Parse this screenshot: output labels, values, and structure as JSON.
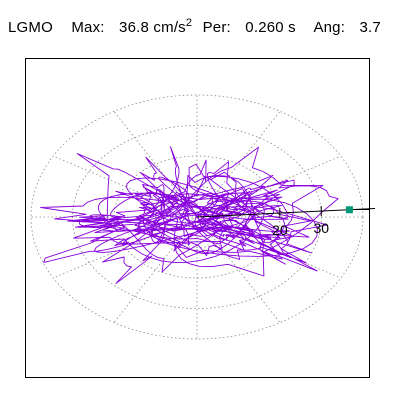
{
  "header": {
    "station": "LGMO",
    "max_label": "Max:",
    "max_value": "36.8",
    "max_unit": "cm/s",
    "max_unit_exp": "2",
    "per_label": "Per:",
    "per_value": "0.260 s",
    "ang_label": "Ang:",
    "ang_value": "3.7"
  },
  "colors": {
    "trace": "#8800dd",
    "grid": "#888888",
    "axis": "#000000",
    "marker": "#009977",
    "frame": "#000000"
  },
  "chart_data": {
    "type": "scatter",
    "subtype": "polar-particle-motion",
    "r_max": 40,
    "ring_step": 10,
    "spokes_deg": [
      0,
      30,
      60,
      90,
      120,
      150,
      180,
      210,
      240,
      270,
      300,
      330
    ],
    "grid": true,
    "grid_style": "dotted",
    "tick_labels": [
      "20",
      "30"
    ],
    "tick_values": [
      20,
      30
    ],
    "axis_angle_deg": 3.7,
    "peak_value": 36.8
  }
}
